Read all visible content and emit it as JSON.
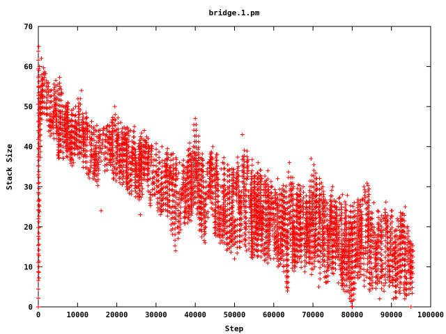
{
  "chart_data": {
    "type": "scatter",
    "title": "bridge.1.pm",
    "xlabel": "Step",
    "ylabel": "Stack Size",
    "xlim": [
      0,
      100000
    ],
    "ylim": [
      0,
      70
    ],
    "x_ticks": [
      0,
      10000,
      20000,
      30000,
      40000,
      50000,
      60000,
      70000,
      80000,
      90000,
      100000
    ],
    "y_ticks": [
      0,
      10,
      20,
      30,
      40,
      50,
      60,
      70
    ],
    "marker": "plus",
    "color": "#ff0000",
    "grid": false,
    "legend": "none",
    "series": [
      {
        "points": [
          [
            0,
            0
          ],
          [
            120,
            65
          ],
          [
            300,
            60
          ],
          [
            500,
            55
          ],
          [
            800,
            62
          ],
          [
            1000,
            52
          ],
          [
            1500,
            58
          ],
          [
            2000,
            48
          ],
          [
            2500,
            56
          ],
          [
            3000,
            45
          ],
          [
            3500,
            50
          ],
          [
            4000,
            42
          ],
          [
            4500,
            52
          ],
          [
            5000,
            38
          ],
          [
            5500,
            55
          ],
          [
            6000,
            44
          ],
          [
            6500,
            50
          ],
          [
            7000,
            40
          ],
          [
            7500,
            51
          ],
          [
            8000,
            43
          ],
          [
            8500,
            49
          ],
          [
            9000,
            36
          ],
          [
            9500,
            50
          ],
          [
            10000,
            40
          ],
          [
            10500,
            48
          ],
          [
            11000,
            54
          ],
          [
            11500,
            44
          ],
          [
            12000,
            38
          ],
          [
            12500,
            45
          ],
          [
            13000,
            34
          ],
          [
            13500,
            42
          ],
          [
            14000,
            38
          ],
          [
            14500,
            44
          ],
          [
            15000,
            36
          ],
          [
            15500,
            42
          ],
          [
            16000,
            24
          ],
          [
            16500,
            44
          ],
          [
            17000,
            40
          ],
          [
            17500,
            45
          ],
          [
            18000,
            36
          ],
          [
            18500,
            43
          ],
          [
            19000,
            38
          ],
          [
            19500,
            50
          ],
          [
            20000,
            42
          ],
          [
            20500,
            36
          ],
          [
            21000,
            46
          ],
          [
            21500,
            33
          ],
          [
            22000,
            41
          ],
          [
            22500,
            30
          ],
          [
            23000,
            40
          ],
          [
            23500,
            44
          ],
          [
            24000,
            34
          ],
          [
            24500,
            45
          ],
          [
            25000,
            30
          ],
          [
            25500,
            40
          ],
          [
            26000,
            23
          ],
          [
            26500,
            38
          ],
          [
            27000,
            44
          ],
          [
            27500,
            36
          ],
          [
            28000,
            42
          ],
          [
            28500,
            32
          ],
          [
            29000,
            40
          ],
          [
            29500,
            28
          ],
          [
            30000,
            38
          ],
          [
            30500,
            24
          ],
          [
            31000,
            36
          ],
          [
            31500,
            40
          ],
          [
            32000,
            28
          ],
          [
            32500,
            35
          ],
          [
            33000,
            26
          ],
          [
            33500,
            33
          ],
          [
            34000,
            38
          ],
          [
            34500,
            28
          ],
          [
            35000,
            14
          ],
          [
            35500,
            32
          ],
          [
            36000,
            36
          ],
          [
            36500,
            27
          ],
          [
            37000,
            34
          ],
          [
            37500,
            30
          ],
          [
            38000,
            36
          ],
          [
            38500,
            25
          ],
          [
            39000,
            33
          ],
          [
            39500,
            40
          ],
          [
            40000,
            47
          ],
          [
            40500,
            36
          ],
          [
            41000,
            25
          ],
          [
            41500,
            34
          ],
          [
            42000,
            30
          ],
          [
            42500,
            16
          ],
          [
            43000,
            28
          ],
          [
            43500,
            36
          ],
          [
            44000,
            30
          ],
          [
            44500,
            40
          ],
          [
            45000,
            24
          ],
          [
            45500,
            33
          ],
          [
            46000,
            20
          ],
          [
            46500,
            30
          ],
          [
            47000,
            36
          ],
          [
            47500,
            16
          ],
          [
            48000,
            28
          ],
          [
            48500,
            34
          ],
          [
            49000,
            22
          ],
          [
            49500,
            30
          ],
          [
            50000,
            12
          ],
          [
            50500,
            28
          ],
          [
            51000,
            35
          ],
          [
            51500,
            24
          ],
          [
            52000,
            43
          ],
          [
            52500,
            30
          ],
          [
            53000,
            20
          ],
          [
            53500,
            34
          ],
          [
            54000,
            26
          ],
          [
            54500,
            32
          ],
          [
            55000,
            18
          ],
          [
            55500,
            28
          ],
          [
            56000,
            36
          ],
          [
            56500,
            24
          ],
          [
            57000,
            32
          ],
          [
            57500,
            14
          ],
          [
            58000,
            26
          ],
          [
            58500,
            34
          ],
          [
            59000,
            22
          ],
          [
            59500,
            30
          ],
          [
            60000,
            12
          ],
          [
            60500,
            26
          ],
          [
            61000,
            32
          ],
          [
            61500,
            20
          ],
          [
            62000,
            28
          ],
          [
            62500,
            10
          ],
          [
            63000,
            24
          ],
          [
            63500,
            4
          ],
          [
            64000,
            36
          ],
          [
            64500,
            22
          ],
          [
            65000,
            30
          ],
          [
            65500,
            18
          ],
          [
            66000,
            28
          ],
          [
            66500,
            12
          ],
          [
            67000,
            24
          ],
          [
            67500,
            30
          ],
          [
            68000,
            20
          ],
          [
            68500,
            26
          ],
          [
            69000,
            14
          ],
          [
            69500,
            37
          ],
          [
            70000,
            28
          ],
          [
            70500,
            18
          ],
          [
            71000,
            26
          ],
          [
            71500,
            5
          ],
          [
            72000,
            22
          ],
          [
            72500,
            30
          ],
          [
            73000,
            16
          ],
          [
            73500,
            26
          ],
          [
            74000,
            10
          ],
          [
            74500,
            24
          ],
          [
            75000,
            30
          ],
          [
            75500,
            16
          ],
          [
            76000,
            25
          ],
          [
            76500,
            6
          ],
          [
            77000,
            22
          ],
          [
            77500,
            28
          ],
          [
            78000,
            14
          ],
          [
            78500,
            24
          ],
          [
            79000,
            4
          ],
          [
            79500,
            18
          ],
          [
            80000,
            0
          ],
          [
            80500,
            26
          ],
          [
            81000,
            16
          ],
          [
            81500,
            24
          ],
          [
            82000,
            10
          ],
          [
            82500,
            22
          ],
          [
            83000,
            30
          ],
          [
            83500,
            14
          ],
          [
            84000,
            23
          ],
          [
            84500,
            4
          ],
          [
            85000,
            20
          ],
          [
            85500,
            26
          ],
          [
            86000,
            12
          ],
          [
            86500,
            24
          ],
          [
            87000,
            2
          ],
          [
            87500,
            18
          ],
          [
            88000,
            22
          ],
          [
            88500,
            6
          ],
          [
            89000,
            20
          ],
          [
            89500,
            10
          ],
          [
            90000,
            24
          ],
          [
            90500,
            2
          ],
          [
            91000,
            16
          ],
          [
            91500,
            22
          ],
          [
            92000,
            4
          ],
          [
            92500,
            18
          ],
          [
            93000,
            12
          ],
          [
            93500,
            25
          ],
          [
            94000,
            6
          ],
          [
            94500,
            16
          ],
          [
            95000,
            0
          ],
          [
            95500,
            14
          ]
        ],
        "upper_envelope": [
          [
            0,
            65
          ],
          [
            1000,
            62
          ],
          [
            3000,
            56
          ],
          [
            5000,
            59
          ],
          [
            7000,
            52
          ],
          [
            9000,
            50
          ],
          [
            11000,
            54
          ],
          [
            13000,
            47
          ],
          [
            15000,
            46
          ],
          [
            17000,
            45
          ],
          [
            19000,
            50
          ],
          [
            21000,
            47
          ],
          [
            23000,
            46
          ],
          [
            25000,
            45
          ],
          [
            27000,
            44
          ],
          [
            29000,
            43
          ],
          [
            31000,
            41
          ],
          [
            33000,
            40
          ],
          [
            35000,
            39
          ],
          [
            37000,
            37
          ],
          [
            40000,
            47
          ],
          [
            42000,
            40
          ],
          [
            44000,
            40
          ],
          [
            46000,
            40
          ],
          [
            48000,
            37
          ],
          [
            50000,
            36
          ],
          [
            52000,
            43
          ],
          [
            54000,
            38
          ],
          [
            56000,
            36
          ],
          [
            58000,
            35
          ],
          [
            60000,
            33
          ],
          [
            62000,
            30
          ],
          [
            64000,
            36
          ],
          [
            66000,
            32
          ],
          [
            68000,
            30
          ],
          [
            70000,
            37
          ],
          [
            72000,
            32
          ],
          [
            74000,
            30
          ],
          [
            76000,
            30
          ],
          [
            78000,
            28
          ],
          [
            80000,
            28
          ],
          [
            82000,
            28
          ],
          [
            84000,
            32
          ],
          [
            86000,
            26
          ],
          [
            88000,
            28
          ],
          [
            90000,
            25
          ],
          [
            92000,
            24
          ],
          [
            94000,
            25
          ],
          [
            95500,
            16
          ]
        ],
        "lower_envelope": [
          [
            0,
            0
          ],
          [
            1000,
            48
          ],
          [
            3000,
            42
          ],
          [
            5000,
            35
          ],
          [
            7000,
            38
          ],
          [
            9000,
            34
          ],
          [
            11000,
            35
          ],
          [
            13000,
            32
          ],
          [
            15000,
            30
          ],
          [
            17000,
            33
          ],
          [
            19000,
            32
          ],
          [
            21000,
            30
          ],
          [
            23000,
            28
          ],
          [
            25000,
            26
          ],
          [
            27000,
            28
          ],
          [
            29000,
            24
          ],
          [
            31000,
            22
          ],
          [
            33000,
            22
          ],
          [
            35000,
            14
          ],
          [
            37000,
            20
          ],
          [
            40000,
            22
          ],
          [
            42000,
            16
          ],
          [
            44000,
            20
          ],
          [
            46000,
            16
          ],
          [
            48000,
            14
          ],
          [
            50000,
            12
          ],
          [
            52000,
            16
          ],
          [
            54000,
            12
          ],
          [
            56000,
            12
          ],
          [
            58000,
            10
          ],
          [
            60000,
            10
          ],
          [
            62000,
            10
          ],
          [
            63500,
            4
          ],
          [
            66000,
            10
          ],
          [
            68000,
            8
          ],
          [
            70000,
            8
          ],
          [
            71500,
            5
          ],
          [
            74000,
            6
          ],
          [
            76000,
            6
          ],
          [
            78000,
            4
          ],
          [
            80000,
            0
          ],
          [
            82000,
            6
          ],
          [
            84000,
            4
          ],
          [
            86000,
            4
          ],
          [
            87000,
            2
          ],
          [
            89000,
            4
          ],
          [
            90500,
            2
          ],
          [
            92000,
            2
          ],
          [
            94000,
            2
          ],
          [
            95500,
            0
          ]
        ]
      }
    ]
  }
}
